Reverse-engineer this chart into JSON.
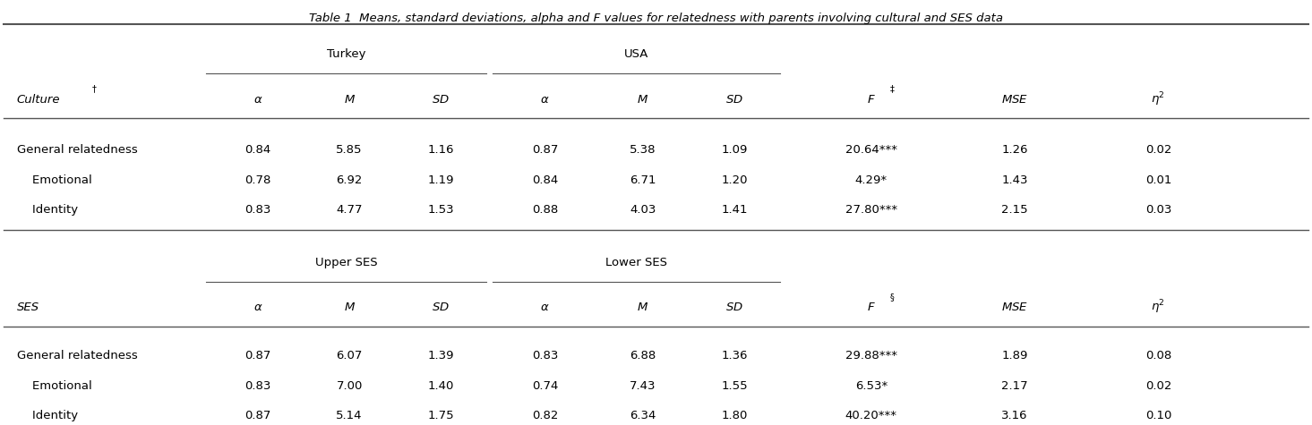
{
  "title": "Table 1  Means, standard deviations, alpha and F values for relatedness with parents involving cultural and SES data",
  "section1_group1_label": "Turkey",
  "section1_group2_label": "USA",
  "section2_group1_label": "Upper SES",
  "section2_group2_label": "Lower SES",
  "section1_row_label": "Culture",
  "section1_row_superscript": "†",
  "section2_row_label": "SES",
  "F1_superscript": "‡",
  "F2_superscript": "§",
  "rows": [
    {
      "label": "General relatedness",
      "indent": false,
      "turkey_alpha": "0.84",
      "turkey_M": "5.85",
      "turkey_SD": "1.16",
      "usa_alpha": "0.87",
      "usa_M": "5.38",
      "usa_SD": "1.09",
      "F": "20.64***",
      "MSE": "1.26",
      "eta2": "0.02"
    },
    {
      "label": "Emotional",
      "indent": true,
      "turkey_alpha": "0.78",
      "turkey_M": "6.92",
      "turkey_SD": "1.19",
      "usa_alpha": "0.84",
      "usa_M": "6.71",
      "usa_SD": "1.20",
      "F": "4.29*",
      "MSE": "1.43",
      "eta2": "0.01"
    },
    {
      "label": "Identity",
      "indent": true,
      "turkey_alpha": "0.83",
      "turkey_M": "4.77",
      "turkey_SD": "1.53",
      "usa_alpha": "0.88",
      "usa_M": "4.03",
      "usa_SD": "1.41",
      "F": "27.80***",
      "MSE": "2.15",
      "eta2": "0.03"
    }
  ],
  "rows2": [
    {
      "label": "General relatedness",
      "indent": false,
      "g1_alpha": "0.87",
      "g1_M": "6.07",
      "g1_SD": "1.39",
      "g2_alpha": "0.83",
      "g2_M": "6.88",
      "g2_SD": "1.36",
      "F": "29.88***",
      "MSE": "1.89",
      "eta2": "0.08"
    },
    {
      "label": "Emotional",
      "indent": true,
      "g1_alpha": "0.83",
      "g1_M": "7.00",
      "g1_SD": "1.40",
      "g2_alpha": "0.74",
      "g2_M": "7.43",
      "g2_SD": "1.55",
      "F": "6.53*",
      "MSE": "2.17",
      "eta2": "0.02"
    },
    {
      "label": "Identity",
      "indent": true,
      "g1_alpha": "0.87",
      "g1_M": "5.14",
      "g1_SD": "1.75",
      "g2_alpha": "0.82",
      "g2_M": "6.34",
      "g2_SD": "1.80",
      "F": "40.20***",
      "MSE": "3.16",
      "eta2": "0.10"
    }
  ],
  "background": "#ffffff",
  "text_color": "#000000",
  "line_color": "#555555"
}
